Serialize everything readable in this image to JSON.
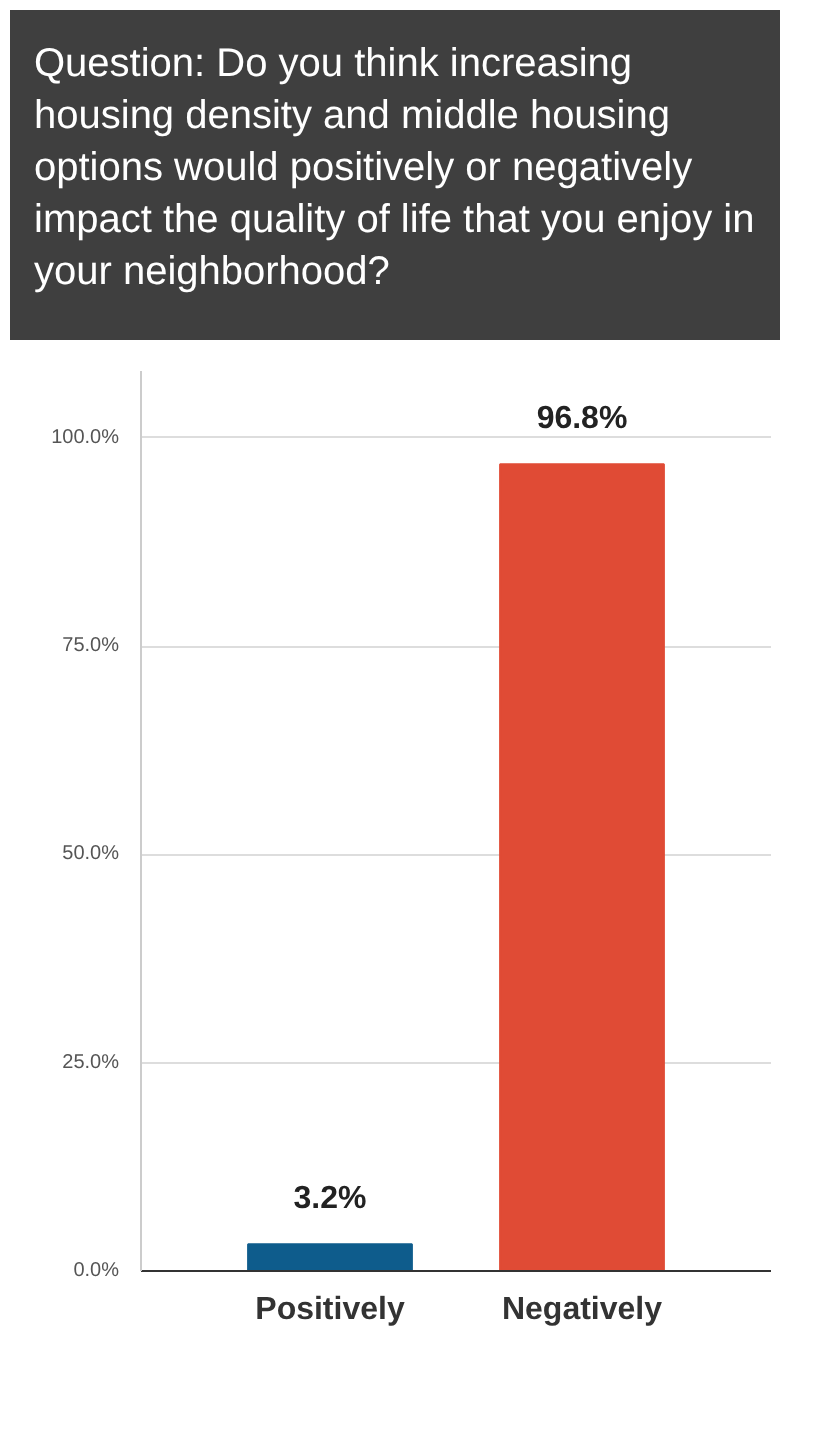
{
  "chart_data": {
    "type": "bar",
    "title": "Question: Do you think increasing housing density and middle housing options would positively or negatively impact the quality of life that you enjoy in your neighborhood?",
    "categories": [
      "Positively",
      "Negatively"
    ],
    "values": [
      3.2,
      96.8
    ],
    "colors": [
      "#0e5c8c",
      "#e04b35"
    ],
    "value_labels": [
      "3.2%",
      "96.8%"
    ],
    "ylim": [
      0,
      108
    ],
    "yticks": [
      {
        "value": 0,
        "label": "0.0%"
      },
      {
        "value": 25,
        "label": "25.0%"
      },
      {
        "value": 50,
        "label": "50.0%"
      },
      {
        "value": 75,
        "label": "75.0%"
      },
      {
        "value": 100,
        "label": "100.0%"
      }
    ],
    "grid": "y"
  }
}
